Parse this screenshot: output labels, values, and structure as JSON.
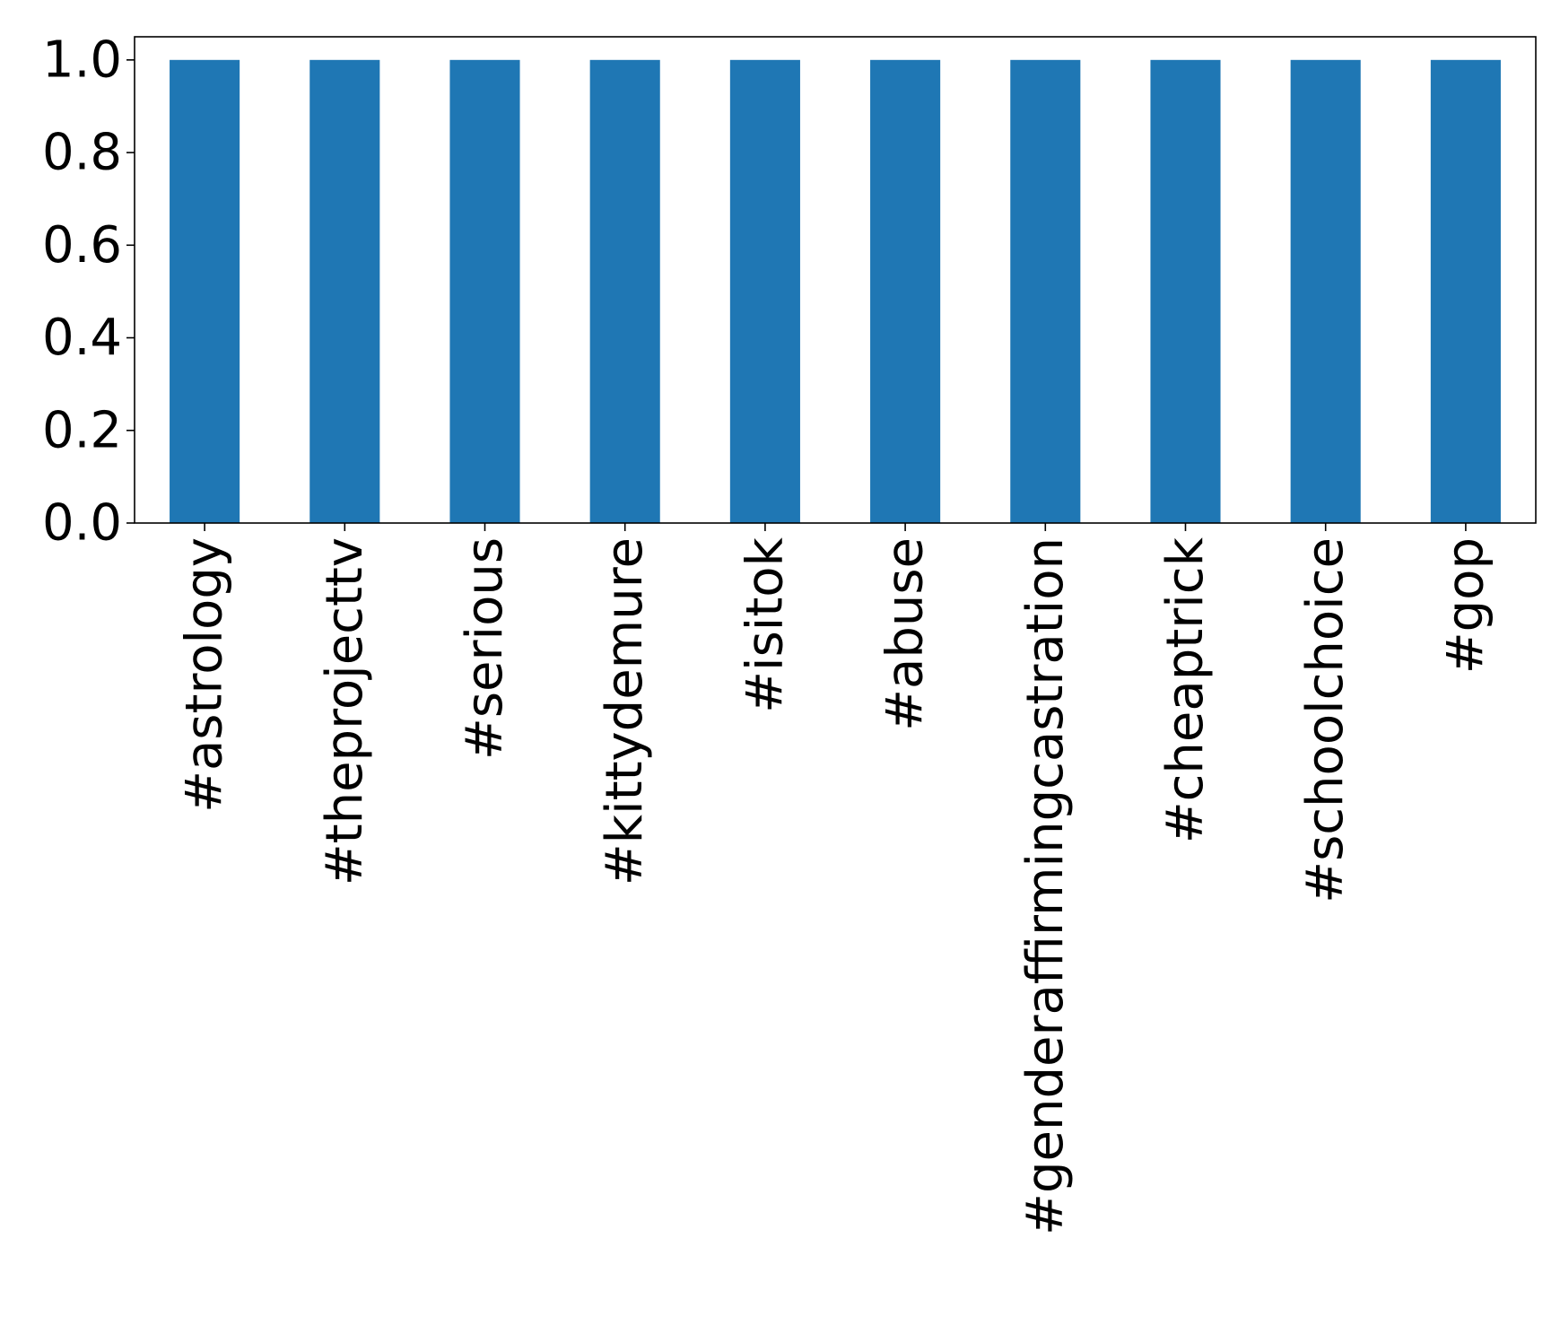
{
  "chart_data": {
    "type": "bar",
    "categories": [
      "#astrology",
      "#theprojecttv",
      "#serious",
      "#kittydemure",
      "#isitok",
      "#abuse",
      "#genderaffirmingcastration",
      "#cheaptrick",
      "#schoolchoice",
      "#gop"
    ],
    "values": [
      1.0,
      1.0,
      1.0,
      1.0,
      1.0,
      1.0,
      1.0,
      1.0,
      1.0,
      1.0
    ],
    "title": "",
    "xlabel": "",
    "ylabel": "",
    "ylim": [
      0,
      1.05
    ],
    "yticks": [
      "0.0",
      "0.2",
      "0.4",
      "0.6",
      "0.8",
      "1.0"
    ],
    "grid": false,
    "legend": "none",
    "bar_color": "#1f77b4"
  }
}
